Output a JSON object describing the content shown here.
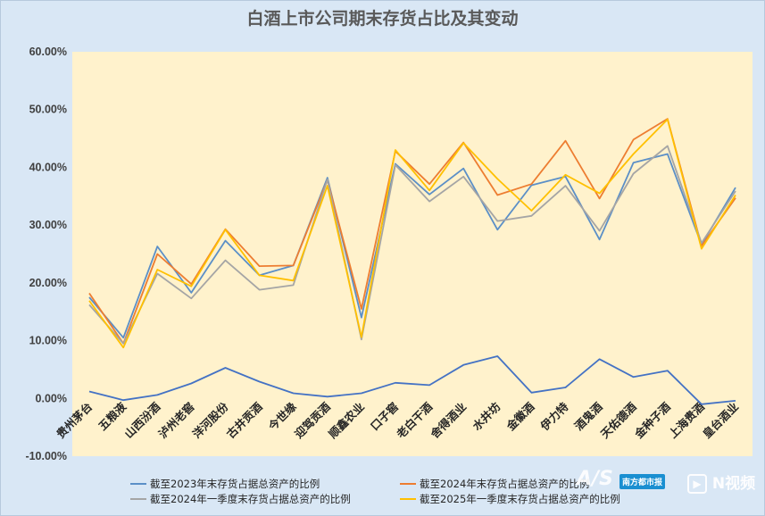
{
  "chart_data": {
    "type": "line",
    "title": "白酒上市公司期末存货占比及其变动",
    "categories": [
      "贵州茅台",
      "五粮液",
      "山西汾酒",
      "泸州老窖",
      "洋河股份",
      "古井贡酒",
      "今世缘",
      "迎驾贡酒",
      "顺鑫农业",
      "口子窖",
      "老白干酒",
      "舍得酒业",
      "水井坊",
      "金徽酒",
      "伊力特",
      "酒鬼酒",
      "天佑德酒",
      "金种子酒",
      "上海贵酒",
      "皇台酒业"
    ],
    "yticks": [
      "60.00%",
      "50.00%",
      "40.00%",
      "30.00%",
      "20.00%",
      "10.00%",
      "0.00%",
      "-10.00%"
    ],
    "ylim": [
      -10,
      60
    ],
    "grid": false,
    "legend_position": "bottom",
    "series": [
      {
        "name": "截至2023年末存货占据总资产的比例",
        "color": "#5b8fc7",
        "values": [
          17.5,
          10.5,
          26.3,
          18.3,
          27.3,
          21.3,
          23.0,
          38.2,
          14.0,
          40.6,
          35.3,
          39.8,
          29.2,
          36.9,
          38.4,
          27.5,
          40.8,
          42.3,
          26.6,
          36.5
        ]
      },
      {
        "name": "截至2024年末存货占据总资产的比例",
        "color": "#ed7d31",
        "values": [
          18.2,
          9.5,
          25.0,
          19.8,
          29.3,
          22.9,
          23.0,
          37.8,
          15.5,
          42.8,
          37.1,
          44.3,
          35.2,
          37.1,
          44.6,
          34.6,
          44.8,
          48.4,
          26.4,
          34.7
        ]
      },
      {
        "name": "截至2024年一季度末存货占据总资产的比例",
        "color": "#a5a5a5",
        "values": [
          16.2,
          9.5,
          21.6,
          17.3,
          23.9,
          18.8,
          19.6,
          37.9,
          10.2,
          40.4,
          34.1,
          38.4,
          30.7,
          31.6,
          36.8,
          29.0,
          38.9,
          43.7,
          26.9,
          35.9
        ]
      },
      {
        "name": "截至2025年一季度末存货占据总资产的比例",
        "color": "#ffc000",
        "values": [
          16.9,
          8.8,
          22.3,
          19.4,
          29.2,
          21.3,
          20.4,
          36.8,
          10.6,
          43.0,
          36.0,
          44.2,
          38.0,
          32.5,
          38.7,
          35.5,
          42.3,
          48.3,
          25.9,
          35.2
        ]
      },
      {
        "name": "",
        "color": "#4472c4",
        "in_legend": false,
        "values": [
          1.2,
          -0.3,
          0.6,
          2.6,
          5.3,
          2.9,
          0.9,
          0.3,
          0.9,
          2.7,
          2.3,
          5.8,
          7.3,
          1.0,
          1.9,
          6.8,
          3.7,
          4.8,
          -1.0,
          -0.4
        ]
      }
    ]
  },
  "watermark": {
    "logo_text": "A/S",
    "badge_text": "南方都市报",
    "video_text": "N视频"
  }
}
